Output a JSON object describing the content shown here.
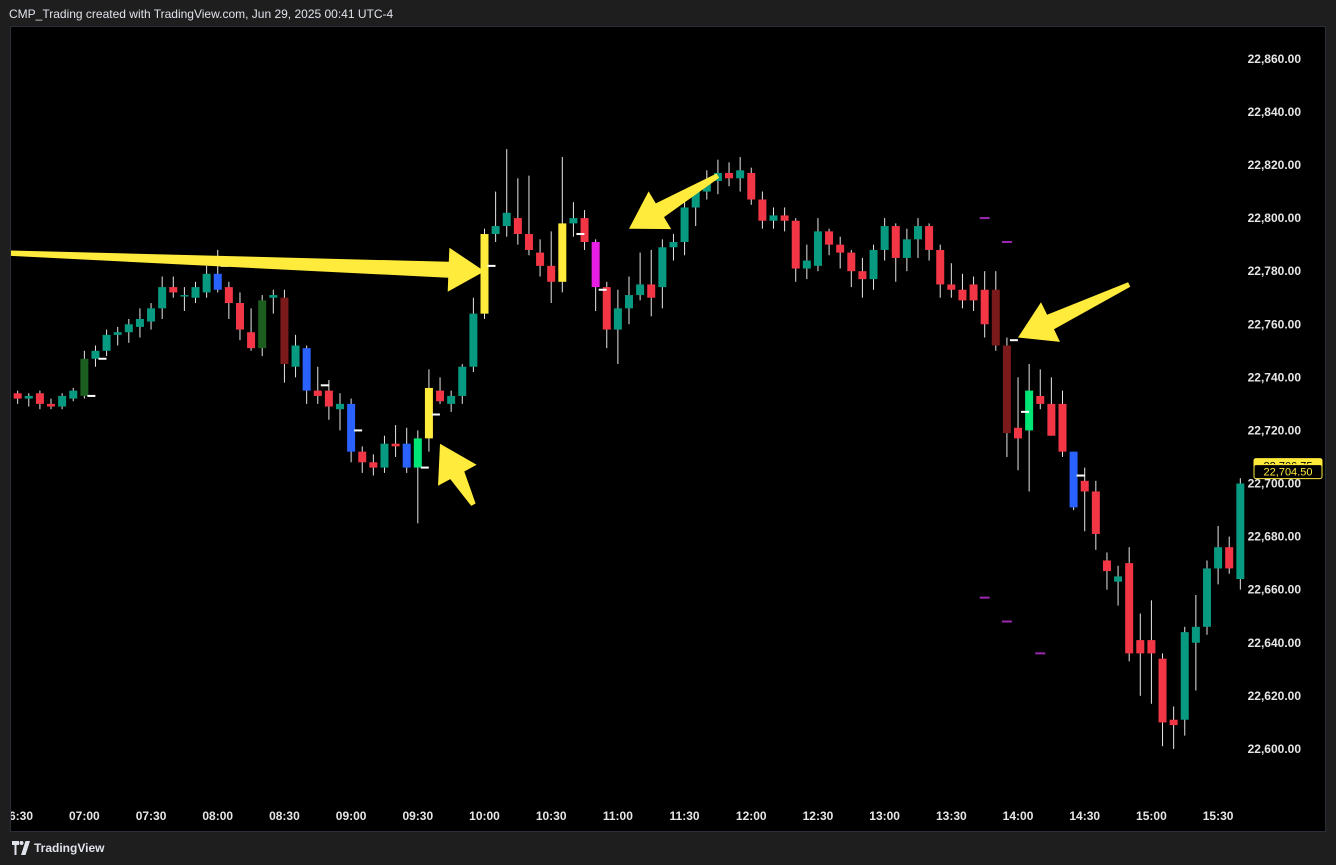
{
  "header": {
    "text": "CMP_Trading created with TradingView.com, Jun 29, 2025 00:41 UTC-4"
  },
  "footer": {
    "brand": "TradingView"
  },
  "colors": {
    "background": "#000000",
    "up": "#089981",
    "down": "#f23645",
    "yellow": "#ffeb3b",
    "magenta": "#e91ee6",
    "blue": "#2962ff",
    "dark_green": "#1b5e20",
    "dark_red": "#7b1a1a",
    "lime": "#00e676",
    "arrow": "#ffeb3b",
    "level_marker": "#9c27b0"
  },
  "price_labels": [
    {
      "value": 22706.75,
      "text": "22,706.75",
      "style": "filled"
    },
    {
      "value": 22704.5,
      "text": "22,704.50",
      "style": "outlined"
    }
  ],
  "chart_data": {
    "type": "candlestick",
    "title": "",
    "interval_minutes": 5,
    "y_axis": {
      "range": [
        22580,
        22872
      ],
      "ticks": [
        22600,
        22620,
        22640,
        22660,
        22680,
        22700,
        22720,
        22740,
        22760,
        22780,
        22800,
        22820,
        22840,
        22860
      ],
      "tick_labels": [
        "22,600.00",
        "22,620.00",
        "22,640.00",
        "22,660.00",
        "22,680.00",
        "22,700.00",
        "22,720.00",
        "22,740.00",
        "22,760.00",
        "22,780.00",
        "22,800.00",
        "22,820.00",
        "22,840.00",
        "22,860.00"
      ]
    },
    "x_axis": {
      "range": [
        "06:27",
        "15:43"
      ],
      "tick_labels": [
        "06:30",
        "07:00",
        "07:30",
        "08:00",
        "08:30",
        "09:00",
        "09:30",
        "10:00",
        "10:30",
        "11:00",
        "11:30",
        "12:00",
        "12:30",
        "13:00",
        "13:30",
        "14:00",
        "14:30",
        "15:00",
        "15:30"
      ]
    },
    "candles": [
      {
        "t": "06:30",
        "o": 22734,
        "h": 22735,
        "l": 22730,
        "c": 22732
      },
      {
        "t": "06:35",
        "o": 22732,
        "h": 22734,
        "l": 22729,
        "c": 22733
      },
      {
        "t": "06:40",
        "o": 22734,
        "h": 22735,
        "l": 22728,
        "c": 22730
      },
      {
        "t": "06:45",
        "o": 22730,
        "h": 22732,
        "l": 22728,
        "c": 22729
      },
      {
        "t": "06:50",
        "o": 22729,
        "h": 22734,
        "l": 22728,
        "c": 22733
      },
      {
        "t": "06:55",
        "o": 22732,
        "h": 22736,
        "l": 22731,
        "c": 22735
      },
      {
        "t": "07:00",
        "o": 22733,
        "h": 22750,
        "l": 22732,
        "c": 22747,
        "color": "dark_green",
        "mark": 22733
      },
      {
        "t": "07:05",
        "o": 22747,
        "h": 22752,
        "l": 22744,
        "c": 22750,
        "mark": 22747
      },
      {
        "t": "07:10",
        "o": 22750,
        "h": 22758,
        "l": 22748,
        "c": 22756
      },
      {
        "t": "07:15",
        "o": 22756,
        "h": 22759,
        "l": 22752,
        "c": 22757
      },
      {
        "t": "07:20",
        "o": 22757,
        "h": 22762,
        "l": 22753,
        "c": 22760
      },
      {
        "t": "07:25",
        "o": 22759,
        "h": 22766,
        "l": 22755,
        "c": 22762
      },
      {
        "t": "07:30",
        "o": 22761,
        "h": 22768,
        "l": 22758,
        "c": 22766
      },
      {
        "t": "07:35",
        "o": 22766,
        "h": 22778,
        "l": 22762,
        "c": 22774
      },
      {
        "t": "07:40",
        "o": 22774,
        "h": 22778,
        "l": 22770,
        "c": 22772
      },
      {
        "t": "07:45",
        "o": 22771,
        "h": 22774,
        "l": 22765,
        "c": 22771
      },
      {
        "t": "07:50",
        "o": 22770,
        "h": 22776,
        "l": 22768,
        "c": 22774
      },
      {
        "t": "07:55",
        "o": 22772,
        "h": 22782,
        "l": 22770,
        "c": 22779
      },
      {
        "t": "08:00",
        "o": 22779,
        "h": 22788,
        "l": 22772,
        "c": 22773,
        "color": "blue",
        "mark": 22782
      },
      {
        "t": "08:05",
        "o": 22774,
        "h": 22776,
        "l": 22762,
        "c": 22768
      },
      {
        "t": "08:10",
        "o": 22768,
        "h": 22772,
        "l": 22754,
        "c": 22758
      },
      {
        "t": "08:15",
        "o": 22757,
        "h": 22766,
        "l": 22750,
        "c": 22751
      },
      {
        "t": "08:20",
        "o": 22751,
        "h": 22771,
        "l": 22748,
        "c": 22769,
        "color": "dark_green"
      },
      {
        "t": "08:25",
        "o": 22770,
        "h": 22773,
        "l": 22764,
        "c": 22771
      },
      {
        "t": "08:30",
        "o": 22770,
        "h": 22773,
        "l": 22738,
        "c": 22745,
        "color": "dark_red"
      },
      {
        "t": "08:35",
        "o": 22744,
        "h": 22756,
        "l": 22740,
        "c": 22752
      },
      {
        "t": "08:40",
        "o": 22751,
        "h": 22752,
        "l": 22730,
        "c": 22735,
        "color": "blue"
      },
      {
        "t": "08:45",
        "o": 22735,
        "h": 22744,
        "l": 22730,
        "c": 22733,
        "mark": 22737
      },
      {
        "t": "08:50",
        "o": 22735,
        "h": 22739,
        "l": 22724,
        "c": 22729
      },
      {
        "t": "08:55",
        "o": 22728,
        "h": 22734,
        "l": 22720,
        "c": 22730
      },
      {
        "t": "09:00",
        "o": 22730,
        "h": 22732,
        "l": 22708,
        "c": 22712,
        "color": "blue",
        "mark": 22720
      },
      {
        "t": "09:05",
        "o": 22712,
        "h": 22714,
        "l": 22704,
        "c": 22708
      },
      {
        "t": "09:10",
        "o": 22708,
        "h": 22711,
        "l": 22703,
        "c": 22706
      },
      {
        "t": "09:15",
        "o": 22706,
        "h": 22718,
        "l": 22704,
        "c": 22715
      },
      {
        "t": "09:20",
        "o": 22715,
        "h": 22722,
        "l": 22710,
        "c": 22714
      },
      {
        "t": "09:25",
        "o": 22706,
        "h": 22721,
        "l": 22704,
        "c": 22715,
        "color": "blue"
      },
      {
        "t": "09:30",
        "o": 22706,
        "h": 22720,
        "l": 22685,
        "c": 22717,
        "color": "lime",
        "mark": 22706
      },
      {
        "t": "09:35",
        "o": 22717,
        "h": 22743,
        "l": 22712,
        "c": 22736,
        "color": "yellow",
        "mark": 22726
      },
      {
        "t": "09:40",
        "o": 22735,
        "h": 22740,
        "l": 22730,
        "c": 22731
      },
      {
        "t": "09:45",
        "o": 22730,
        "h": 22735,
        "l": 22727,
        "c": 22733
      },
      {
        "t": "09:50",
        "o": 22733,
        "h": 22745,
        "l": 22730,
        "c": 22744
      },
      {
        "t": "09:55",
        "o": 22744,
        "h": 22770,
        "l": 22742,
        "c": 22764
      },
      {
        "t": "10:00",
        "o": 22764,
        "h": 22796,
        "l": 22762,
        "c": 22794,
        "color": "yellow",
        "mark": 22782
      },
      {
        "t": "10:05",
        "o": 22794,
        "h": 22810,
        "l": 22791,
        "c": 22797
      },
      {
        "t": "10:10",
        "o": 22797,
        "h": 22826,
        "l": 22793,
        "c": 22802
      },
      {
        "t": "10:15",
        "o": 22800,
        "h": 22815,
        "l": 22790,
        "c": 22794
      },
      {
        "t": "10:20",
        "o": 22794,
        "h": 22816,
        "l": 22786,
        "c": 22788
      },
      {
        "t": "10:25",
        "o": 22787,
        "h": 22792,
        "l": 22778,
        "c": 22782
      },
      {
        "t": "10:30",
        "o": 22782,
        "h": 22795,
        "l": 22768,
        "c": 22776
      },
      {
        "t": "10:35",
        "o": 22776,
        "h": 22823,
        "l": 22772,
        "c": 22798,
        "color": "yellow"
      },
      {
        "t": "10:40",
        "o": 22798,
        "h": 22806,
        "l": 22793,
        "c": 22800,
        "mark": 22794
      },
      {
        "t": "10:45",
        "o": 22800,
        "h": 22803,
        "l": 22788,
        "c": 22791
      },
      {
        "t": "10:50",
        "o": 22791,
        "h": 22792,
        "l": 22765,
        "c": 22774,
        "color": "magenta",
        "mark": 22773
      },
      {
        "t": "10:55",
        "o": 22774,
        "h": 22776,
        "l": 22751,
        "c": 22758
      },
      {
        "t": "11:00",
        "o": 22758,
        "h": 22773,
        "l": 22745,
        "c": 22766
      },
      {
        "t": "11:05",
        "o": 22766,
        "h": 22778,
        "l": 22760,
        "c": 22771
      },
      {
        "t": "11:10",
        "o": 22771,
        "h": 22787,
        "l": 22769,
        "c": 22775
      },
      {
        "t": "11:15",
        "o": 22775,
        "h": 22788,
        "l": 22763,
        "c": 22770
      },
      {
        "t": "11:20",
        "o": 22774,
        "h": 22792,
        "l": 22766,
        "c": 22789
      },
      {
        "t": "11:25",
        "o": 22789,
        "h": 22794,
        "l": 22784,
        "c": 22791
      },
      {
        "t": "11:30",
        "o": 22791,
        "h": 22806,
        "l": 22786,
        "c": 22804
      },
      {
        "t": "11:35",
        "o": 22804,
        "h": 22812,
        "l": 22797,
        "c": 22810
      },
      {
        "t": "11:40",
        "o": 22810,
        "h": 22818,
        "l": 22807,
        "c": 22814
      },
      {
        "t": "11:45",
        "o": 22814,
        "h": 22822,
        "l": 22809,
        "c": 22817
      },
      {
        "t": "11:50",
        "o": 22817,
        "h": 22821,
        "l": 22812,
        "c": 22815
      },
      {
        "t": "11:55",
        "o": 22815,
        "h": 22823,
        "l": 22810,
        "c": 22818
      },
      {
        "t": "12:00",
        "o": 22817,
        "h": 22819,
        "l": 22805,
        "c": 22807
      },
      {
        "t": "12:05",
        "o": 22807,
        "h": 22810,
        "l": 22796,
        "c": 22799
      },
      {
        "t": "12:10",
        "o": 22799,
        "h": 22804,
        "l": 22796,
        "c": 22801
      },
      {
        "t": "12:15",
        "o": 22801,
        "h": 22804,
        "l": 22795,
        "c": 22799
      },
      {
        "t": "12:20",
        "o": 22799,
        "h": 22800,
        "l": 22776,
        "c": 22781
      },
      {
        "t": "12:25",
        "o": 22781,
        "h": 22790,
        "l": 22777,
        "c": 22784
      },
      {
        "t": "12:30",
        "o": 22782,
        "h": 22800,
        "l": 22780,
        "c": 22795
      },
      {
        "t": "12:35",
        "o": 22795,
        "h": 22796,
        "l": 22786,
        "c": 22790
      },
      {
        "t": "12:40",
        "o": 22790,
        "h": 22793,
        "l": 22781,
        "c": 22787
      },
      {
        "t": "12:45",
        "o": 22787,
        "h": 22788,
        "l": 22774,
        "c": 22780
      },
      {
        "t": "12:50",
        "o": 22780,
        "h": 22785,
        "l": 22770,
        "c": 22777
      },
      {
        "t": "12:55",
        "o": 22777,
        "h": 22790,
        "l": 22773,
        "c": 22788
      },
      {
        "t": "13:00",
        "o": 22788,
        "h": 22800,
        "l": 22784,
        "c": 22797
      },
      {
        "t": "13:05",
        "o": 22797,
        "h": 22798,
        "l": 22776,
        "c": 22785
      },
      {
        "t": "13:10",
        "o": 22785,
        "h": 22796,
        "l": 22780,
        "c": 22792
      },
      {
        "t": "13:15",
        "o": 22792,
        "h": 22800,
        "l": 22785,
        "c": 22797
      },
      {
        "t": "13:20",
        "o": 22797,
        "h": 22798,
        "l": 22784,
        "c": 22788
      },
      {
        "t": "13:25",
        "o": 22788,
        "h": 22790,
        "l": 22770,
        "c": 22775
      },
      {
        "t": "13:30",
        "o": 22775,
        "h": 22783,
        "l": 22770,
        "c": 22773
      },
      {
        "t": "13:35",
        "o": 22773,
        "h": 22779,
        "l": 22766,
        "c": 22769
      },
      {
        "t": "13:40",
        "o": 22775,
        "h": 22778,
        "l": 22765,
        "c": 22769
      },
      {
        "t": "13:45",
        "o": 22773,
        "h": 22780,
        "l": 22755,
        "c": 22760
      },
      {
        "t": "13:50",
        "o": 22773,
        "h": 22780,
        "l": 22750,
        "c": 22752,
        "color": "dark_red"
      },
      {
        "t": "13:55",
        "o": 22752,
        "h": 22755,
        "l": 22710,
        "c": 22719,
        "color": "dark_red",
        "mark": 22754
      },
      {
        "t": "14:00",
        "o": 22721,
        "h": 22740,
        "l": 22705,
        "c": 22717,
        "mark": 22727
      },
      {
        "t": "14:05",
        "o": 22720,
        "h": 22745,
        "l": 22697,
        "c": 22735,
        "color": "lime"
      },
      {
        "t": "14:10",
        "o": 22733,
        "h": 22743,
        "l": 22728,
        "c": 22730
      },
      {
        "t": "14:15",
        "o": 22730,
        "h": 22740,
        "l": 22718,
        "c": 22718
      },
      {
        "t": "14:20",
        "o": 22730,
        "h": 22735,
        "l": 22710,
        "c": 22712
      },
      {
        "t": "14:25",
        "o": 22712,
        "h": 22712,
        "l": 22690,
        "c": 22691,
        "color": "blue",
        "mark": 22703
      },
      {
        "t": "14:30",
        "o": 22701,
        "h": 22706,
        "l": 22682,
        "c": 22697
      },
      {
        "t": "14:35",
        "o": 22697,
        "h": 22701,
        "l": 22675,
        "c": 22681
      },
      {
        "t": "14:40",
        "o": 22671,
        "h": 22674,
        "l": 22660,
        "c": 22667
      },
      {
        "t": "14:45",
        "o": 22663,
        "h": 22669,
        "l": 22654,
        "c": 22665
      },
      {
        "t": "14:50",
        "o": 22670,
        "h": 22676,
        "l": 22633,
        "c": 22636
      },
      {
        "t": "14:55",
        "o": 22641,
        "h": 22651,
        "l": 22620,
        "c": 22636
      },
      {
        "t": "15:00",
        "o": 22641,
        "h": 22656,
        "l": 22617,
        "c": 22636
      },
      {
        "t": "15:05",
        "o": 22634,
        "h": 22636,
        "l": 22601,
        "c": 22610
      },
      {
        "t": "15:10",
        "o": 22611,
        "h": 22616,
        "l": 22600,
        "c": 22609
      },
      {
        "t": "15:15",
        "o": 22611,
        "h": 22646,
        "l": 22605,
        "c": 22644
      },
      {
        "t": "15:20",
        "o": 22640,
        "h": 22658,
        "l": 22622,
        "c": 22646
      },
      {
        "t": "15:25",
        "o": 22646,
        "h": 22671,
        "l": 22643,
        "c": 22668
      },
      {
        "t": "15:30",
        "o": 22668,
        "h": 22684,
        "l": 22662,
        "c": 22676
      },
      {
        "t": "15:35",
        "o": 22676,
        "h": 22680,
        "l": 22666,
        "c": 22668
      },
      {
        "t": "15:40",
        "o": 22664,
        "h": 22702,
        "l": 22660,
        "c": 22700
      }
    ],
    "level_markers": [
      {
        "t": "13:45",
        "price": 22800
      },
      {
        "t": "13:55",
        "price": 22791
      },
      {
        "t": "14:10",
        "price": 22760
      },
      {
        "t": "13:45",
        "price": 22657
      },
      {
        "t": "13:55",
        "price": 22648
      },
      {
        "t": "14:10",
        "price": 22636
      }
    ],
    "annotations": [
      {
        "type": "arrow",
        "color": "yellow",
        "from": {
          "t": "06:20",
          "price": 22787
        },
        "to": {
          "t": "10:00",
          "price": 22780
        }
      },
      {
        "type": "arrow",
        "color": "yellow",
        "from": {
          "t": "11:45",
          "price": 22816
        },
        "to": {
          "t": "11:05",
          "price": 22796
        }
      },
      {
        "type": "arrow",
        "color": "yellow",
        "from": {
          "t": "09:55",
          "price": 22692
        },
        "to": {
          "t": "09:40",
          "price": 22715
        }
      },
      {
        "type": "arrow",
        "color": "yellow",
        "from": {
          "t": "14:50",
          "price": 22775
        },
        "to": {
          "t": "14:00",
          "price": 22755
        }
      }
    ]
  }
}
